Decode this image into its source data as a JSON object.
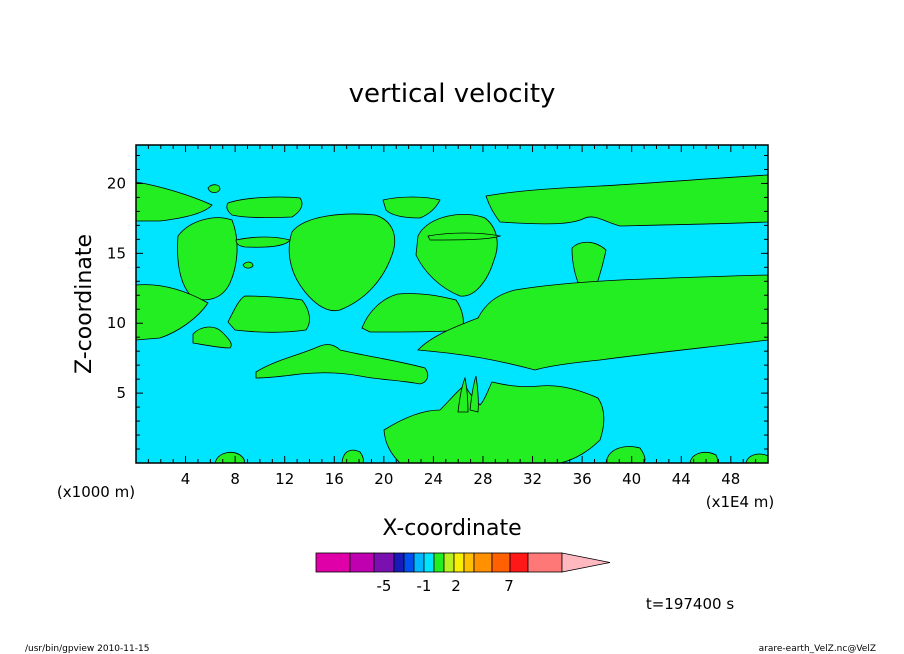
{
  "chart_data": {
    "type": "heatmap",
    "title": "vertical velocity",
    "xlabel": "X-coordinate",
    "ylabel": "Z-coordinate",
    "x_unit_note": "(x1000 m)",
    "x_axis_extent_note": "(x1E4 m)",
    "xlim": [
      0,
      51
    ],
    "ylim": [
      0,
      22.75
    ],
    "x_ticks": [
      4,
      8,
      12,
      16,
      20,
      24,
      28,
      32,
      36,
      40,
      44,
      48
    ],
    "y_ticks": [
      5,
      10,
      15,
      20
    ],
    "background_level_color": "#00e5ff",
    "region_level_color": "#22ee22",
    "colorbar": {
      "colors": [
        "#e000a8",
        "#c000b0",
        "#7a10b0",
        "#1a1ab8",
        "#0050f0",
        "#00b8ff",
        "#00e5ff",
        "#22ee22",
        "#b8f020",
        "#f8f000",
        "#ffc000",
        "#ff9000",
        "#ff6000",
        "#ff1818",
        "#ff7878",
        "#ffb8c0"
      ],
      "labels": [
        "-5",
        "-1",
        "2",
        "7"
      ]
    },
    "time_label": "t=197400 s"
  },
  "footer": {
    "left": "/usr/bin/gpview   2010-11-15",
    "right": "arare-earth_VelZ.nc@VelZ"
  }
}
